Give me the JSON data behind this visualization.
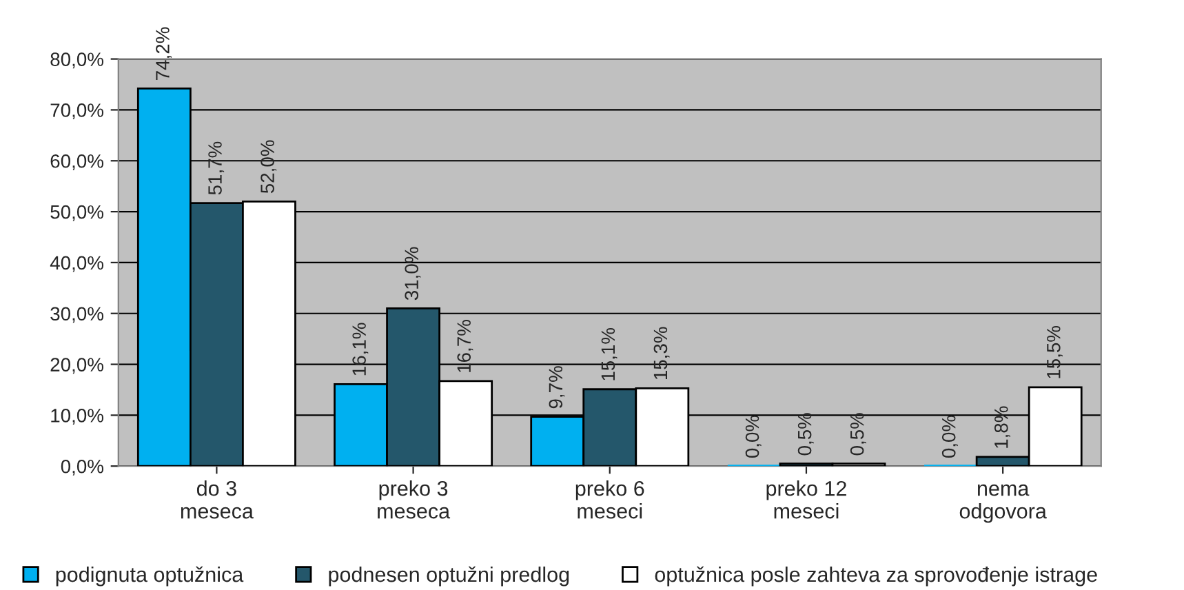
{
  "chart_data": {
    "type": "bar",
    "categories": [
      "do 3\nmeseca",
      "preko 3\nmeseca",
      "preko 6\nmeseci",
      "preko 12\nmeseci",
      "nema\nodgovora"
    ],
    "series": [
      {
        "name": "podignuta optužnica",
        "color": "#00b0f0",
        "values": [
          74.2,
          16.1,
          9.7,
          0.0,
          0.0
        ],
        "value_labels": [
          "74,2%",
          "16,1%",
          "9,7%",
          "0,0%",
          "0,0%"
        ]
      },
      {
        "name": "podnesen optužni predlog",
        "color": "#24576b",
        "values": [
          51.7,
          31.0,
          15.1,
          0.5,
          1.8
        ],
        "value_labels": [
          "51,7%",
          "31,0%",
          "15,1%",
          "0,5%",
          "1,8%"
        ]
      },
      {
        "name": "optužnica posle zahteva za sprovođenje istrage",
        "color": "#ffffff",
        "values": [
          52.0,
          16.7,
          15.3,
          0.5,
          15.5
        ],
        "value_labels": [
          "52,0%",
          "16,7%",
          "15,3%",
          "0,5%",
          "15,5%"
        ]
      }
    ],
    "ylim": [
      0,
      80
    ],
    "yticks": [
      {
        "value": 0,
        "label": "0,0%"
      },
      {
        "value": 10,
        "label": "10,0%"
      },
      {
        "value": 20,
        "label": "20,0%"
      },
      {
        "value": 30,
        "label": "30,0%"
      },
      {
        "value": 40,
        "label": "40,0%"
      },
      {
        "value": 50,
        "label": "50,0%"
      },
      {
        "value": 60,
        "label": "60,0%"
      },
      {
        "value": 70,
        "label": "70,0%"
      },
      {
        "value": 80,
        "label": "80,0%"
      }
    ],
    "grid": "y",
    "legend": "bottom"
  }
}
